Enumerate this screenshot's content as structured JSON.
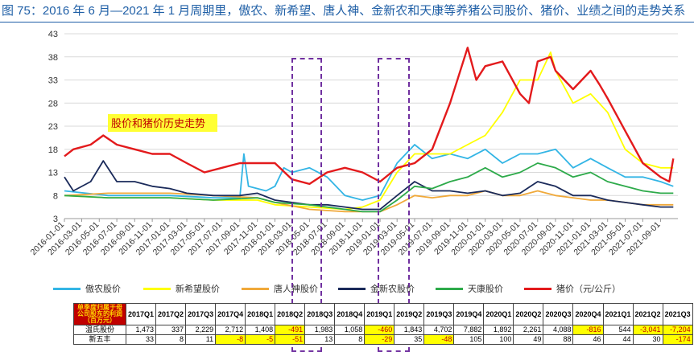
{
  "title": "图 75：2016 年 6 月—2021 年 1 月周期里，傲农、新希望、唐人神、金新农和天康等养猪公司股价、猪价、业绩之间的走势关系",
  "chart_data": {
    "type": "line",
    "annotation": "股价和猪价历史走势",
    "ylim": [
      3,
      43
    ],
    "yticks": [
      3,
      8,
      13,
      18,
      23,
      28,
      33,
      38,
      43
    ],
    "x_tick_labels": [
      "2016-01-01",
      "2016-03-01",
      "2016-05-01",
      "2016-07-01",
      "2016-09-01",
      "2016-11-01",
      "2017-01-01",
      "2017-03-01",
      "2017-05-01",
      "2017-07-01",
      "2017-09-01",
      "2017-11-01",
      "2018-01-01",
      "2018-03-01",
      "2018-05-01",
      "2018-07-01",
      "2018-09-01",
      "2018-11-01",
      "2019-01-01",
      "2019-03-01",
      "2019-05-01",
      "2019-07-01",
      "2019-09-01",
      "2019-11-01",
      "2020-01-01",
      "2020-03-01",
      "2020-05-01",
      "2020-07-01",
      "2020-09-01",
      "2020-11-01",
      "2021-01-01",
      "2021-03-01",
      "2021-05-01",
      "2021-07-01",
      "2021-09-01"
    ],
    "series": [
      {
        "name": "傲农股价",
        "color": "#33b5e5",
        "points": [
          [
            "2016-01-01",
            9
          ],
          [
            "2016-06-01",
            8
          ],
          [
            "2017-01-01",
            8
          ],
          [
            "2017-06-01",
            7.5
          ],
          [
            "2017-09-01",
            7.5
          ],
          [
            "2017-09-15",
            17
          ],
          [
            "2017-10-01",
            10
          ],
          [
            "2017-12-01",
            9
          ],
          [
            "2018-01-01",
            10
          ],
          [
            "2018-02-01",
            14
          ],
          [
            "2018-03-01",
            13
          ],
          [
            "2018-05-01",
            14
          ],
          [
            "2018-07-01",
            12
          ],
          [
            "2018-09-01",
            8
          ],
          [
            "2018-11-01",
            7
          ],
          [
            "2019-01-01",
            8
          ],
          [
            "2019-03-01",
            15
          ],
          [
            "2019-05-01",
            19
          ],
          [
            "2019-07-01",
            16
          ],
          [
            "2019-09-01",
            17
          ],
          [
            "2019-11-01",
            16
          ],
          [
            "2020-01-01",
            18
          ],
          [
            "2020-03-01",
            15
          ],
          [
            "2020-05-01",
            17
          ],
          [
            "2020-07-01",
            17
          ],
          [
            "2020-09-01",
            18
          ],
          [
            "2020-11-01",
            14
          ],
          [
            "2021-01-01",
            16
          ],
          [
            "2021-03-01",
            14
          ],
          [
            "2021-05-01",
            12
          ],
          [
            "2021-07-01",
            12
          ],
          [
            "2021-09-01",
            11
          ],
          [
            "2021-10-15",
            10
          ]
        ]
      },
      {
        "name": "新希望股价",
        "color": "#ffff00",
        "points": [
          [
            "2016-01-01",
            8
          ],
          [
            "2016-06-01",
            7.5
          ],
          [
            "2017-01-01",
            7.5
          ],
          [
            "2017-06-01",
            7
          ],
          [
            "2017-11-01",
            7
          ],
          [
            "2018-01-01",
            6
          ],
          [
            "2018-05-01",
            5.5
          ],
          [
            "2018-09-01",
            5
          ],
          [
            "2018-11-01",
            5.5
          ],
          [
            "2019-01-01",
            7
          ],
          [
            "2019-03-01",
            13
          ],
          [
            "2019-05-01",
            17
          ],
          [
            "2019-07-01",
            17
          ],
          [
            "2019-09-01",
            17
          ],
          [
            "2019-11-01",
            19
          ],
          [
            "2020-01-01",
            21
          ],
          [
            "2020-03-01",
            26
          ],
          [
            "2020-05-01",
            33
          ],
          [
            "2020-07-01",
            33
          ],
          [
            "2020-08-15",
            39
          ],
          [
            "2020-09-01",
            35
          ],
          [
            "2020-11-01",
            28
          ],
          [
            "2021-01-01",
            30
          ],
          [
            "2021-03-01",
            26
          ],
          [
            "2021-05-01",
            18
          ],
          [
            "2021-07-01",
            15
          ],
          [
            "2021-09-01",
            14
          ],
          [
            "2021-10-15",
            14
          ]
        ]
      },
      {
        "name": "唐人神股价",
        "color": "#f0a93a",
        "points": [
          [
            "2016-01-01",
            8
          ],
          [
            "2016-06-01",
            8.5
          ],
          [
            "2017-01-01",
            8.5
          ],
          [
            "2017-06-01",
            8
          ],
          [
            "2017-11-01",
            7.5
          ],
          [
            "2018-01-01",
            6.5
          ],
          [
            "2018-05-01",
            5
          ],
          [
            "2018-09-01",
            4.5
          ],
          [
            "2018-11-01",
            4.5
          ],
          [
            "2019-01-01",
            4.5
          ],
          [
            "2019-03-01",
            6
          ],
          [
            "2019-05-01",
            8
          ],
          [
            "2019-07-01",
            7.5
          ],
          [
            "2019-09-01",
            8
          ],
          [
            "2019-11-01",
            8
          ],
          [
            "2020-01-01",
            9
          ],
          [
            "2020-03-01",
            8
          ],
          [
            "2020-05-01",
            8
          ],
          [
            "2020-07-01",
            9
          ],
          [
            "2020-09-01",
            8
          ],
          [
            "2020-11-01",
            7.5
          ],
          [
            "2021-01-01",
            7
          ],
          [
            "2021-03-01",
            7
          ],
          [
            "2021-05-01",
            6.5
          ],
          [
            "2021-07-01",
            6
          ],
          [
            "2021-09-01",
            6
          ],
          [
            "2021-10-15",
            6
          ]
        ]
      },
      {
        "name": "金新农股价",
        "color": "#1a2a5a",
        "points": [
          [
            "2016-01-01",
            12
          ],
          [
            "2016-02-01",
            9
          ],
          [
            "2016-04-01",
            11
          ],
          [
            "2016-05-15",
            15.5
          ],
          [
            "2016-07-01",
            11
          ],
          [
            "2016-09-01",
            11
          ],
          [
            "2016-11-01",
            10
          ],
          [
            "2017-01-01",
            9.5
          ],
          [
            "2017-03-01",
            8.5
          ],
          [
            "2017-06-01",
            8
          ],
          [
            "2017-09-01",
            8
          ],
          [
            "2017-11-01",
            8.5
          ],
          [
            "2018-01-01",
            7
          ],
          [
            "2018-03-01",
            6.5
          ],
          [
            "2018-05-01",
            6
          ],
          [
            "2018-07-01",
            6
          ],
          [
            "2018-09-01",
            5.5
          ],
          [
            "2018-11-01",
            5
          ],
          [
            "2019-01-01",
            5
          ],
          [
            "2019-03-01",
            8
          ],
          [
            "2019-05-01",
            11
          ],
          [
            "2019-07-01",
            9
          ],
          [
            "2019-09-01",
            9
          ],
          [
            "2019-11-01",
            8.5
          ],
          [
            "2020-01-01",
            9
          ],
          [
            "2020-03-01",
            8
          ],
          [
            "2020-05-01",
            8.5
          ],
          [
            "2020-07-01",
            11
          ],
          [
            "2020-09-01",
            10
          ],
          [
            "2020-11-01",
            8
          ],
          [
            "2021-01-01",
            8
          ],
          [
            "2021-03-01",
            7
          ],
          [
            "2021-05-01",
            6.5
          ],
          [
            "2021-07-01",
            6
          ],
          [
            "2021-09-01",
            5.5
          ],
          [
            "2021-10-15",
            5.5
          ]
        ]
      },
      {
        "name": "天康股价",
        "color": "#2daa4a",
        "points": [
          [
            "2016-01-01",
            8
          ],
          [
            "2016-06-01",
            7.5
          ],
          [
            "2017-01-01",
            7.5
          ],
          [
            "2017-06-01",
            7
          ],
          [
            "2017-11-01",
            7.5
          ],
          [
            "2018-01-01",
            6.5
          ],
          [
            "2018-05-01",
            6
          ],
          [
            "2018-09-01",
            5
          ],
          [
            "2018-11-01",
            4.5
          ],
          [
            "2019-01-01",
            4.5
          ],
          [
            "2019-03-01",
            7
          ],
          [
            "2019-05-01",
            10
          ],
          [
            "2019-07-01",
            9.5
          ],
          [
            "2019-09-01",
            11
          ],
          [
            "2019-11-01",
            12
          ],
          [
            "2020-01-01",
            14
          ],
          [
            "2020-03-01",
            12
          ],
          [
            "2020-05-01",
            13
          ],
          [
            "2020-07-01",
            15
          ],
          [
            "2020-09-01",
            14
          ],
          [
            "2020-11-01",
            12
          ],
          [
            "2021-01-01",
            13
          ],
          [
            "2021-03-01",
            11
          ],
          [
            "2021-05-01",
            10
          ],
          [
            "2021-07-01",
            9
          ],
          [
            "2021-09-01",
            8.5
          ],
          [
            "2021-10-15",
            8.5
          ]
        ]
      },
      {
        "name": "猪价（元/公斤）",
        "color": "#e31a1c",
        "points": [
          [
            "2016-01-01",
            16.5
          ],
          [
            "2016-02-01",
            18
          ],
          [
            "2016-04-01",
            19
          ],
          [
            "2016-05-15",
            21
          ],
          [
            "2016-07-01",
            19
          ],
          [
            "2016-09-01",
            18
          ],
          [
            "2016-11-01",
            17
          ],
          [
            "2017-01-01",
            17
          ],
          [
            "2017-03-01",
            15
          ],
          [
            "2017-05-01",
            13
          ],
          [
            "2017-07-01",
            14
          ],
          [
            "2017-09-01",
            15
          ],
          [
            "2017-11-01",
            15
          ],
          [
            "2018-01-01",
            15
          ],
          [
            "2018-03-01",
            11.5
          ],
          [
            "2018-05-01",
            10.5
          ],
          [
            "2018-07-01",
            13
          ],
          [
            "2018-09-01",
            14
          ],
          [
            "2018-11-01",
            13
          ],
          [
            "2019-01-01",
            11
          ],
          [
            "2019-03-01",
            14
          ],
          [
            "2019-05-01",
            15
          ],
          [
            "2019-07-01",
            18
          ],
          [
            "2019-09-01",
            28
          ],
          [
            "2019-11-01",
            40
          ],
          [
            "2019-12-01",
            33
          ],
          [
            "2020-01-01",
            36
          ],
          [
            "2020-03-01",
            37
          ],
          [
            "2020-05-01",
            30
          ],
          [
            "2020-06-01",
            28
          ],
          [
            "2020-07-01",
            37
          ],
          [
            "2020-08-15",
            38
          ],
          [
            "2020-09-01",
            35
          ],
          [
            "2020-11-01",
            31
          ],
          [
            "2021-01-01",
            35
          ],
          [
            "2021-02-01",
            32
          ],
          [
            "2021-03-01",
            29
          ],
          [
            "2021-05-01",
            22
          ],
          [
            "2021-07-01",
            15
          ],
          [
            "2021-09-01",
            12
          ],
          [
            "2021-10-01",
            11
          ],
          [
            "2021-10-15",
            16
          ]
        ]
      }
    ]
  },
  "table": {
    "corner": "单季度归属于母公司股东的利润（百万元）",
    "columns": [
      "2017Q1",
      "2017Q2",
      "2017Q3",
      "2017Q4",
      "2018Q1",
      "2018Q2",
      "2018Q3",
      "2018Q4",
      "2019Q1",
      "2019Q2",
      "2019Q3",
      "2019Q4",
      "2020Q1",
      "2020Q2",
      "2020Q3",
      "2020Q4",
      "2021Q1",
      "2021Q2",
      "2021Q3"
    ],
    "rows": [
      {
        "name": "温氏股份",
        "values": [
          "1,473",
          "337",
          "2,229",
          "2,712",
          "1,408",
          "-491",
          "1,983",
          "1,058",
          "-460",
          "1,843",
          "4,702",
          "7,882",
          "1,892",
          "2,261",
          "4,088",
          "-816",
          "544",
          "-3,041",
          "-7,204"
        ]
      },
      {
        "name": "新五丰",
        "values": [
          "33",
          "8",
          "11",
          "-8",
          "-5",
          "-51",
          "13",
          "8",
          "-29",
          "35",
          "-48",
          "105",
          "100",
          "49",
          "88",
          "46",
          "44",
          "30",
          "-174"
        ]
      }
    ]
  }
}
